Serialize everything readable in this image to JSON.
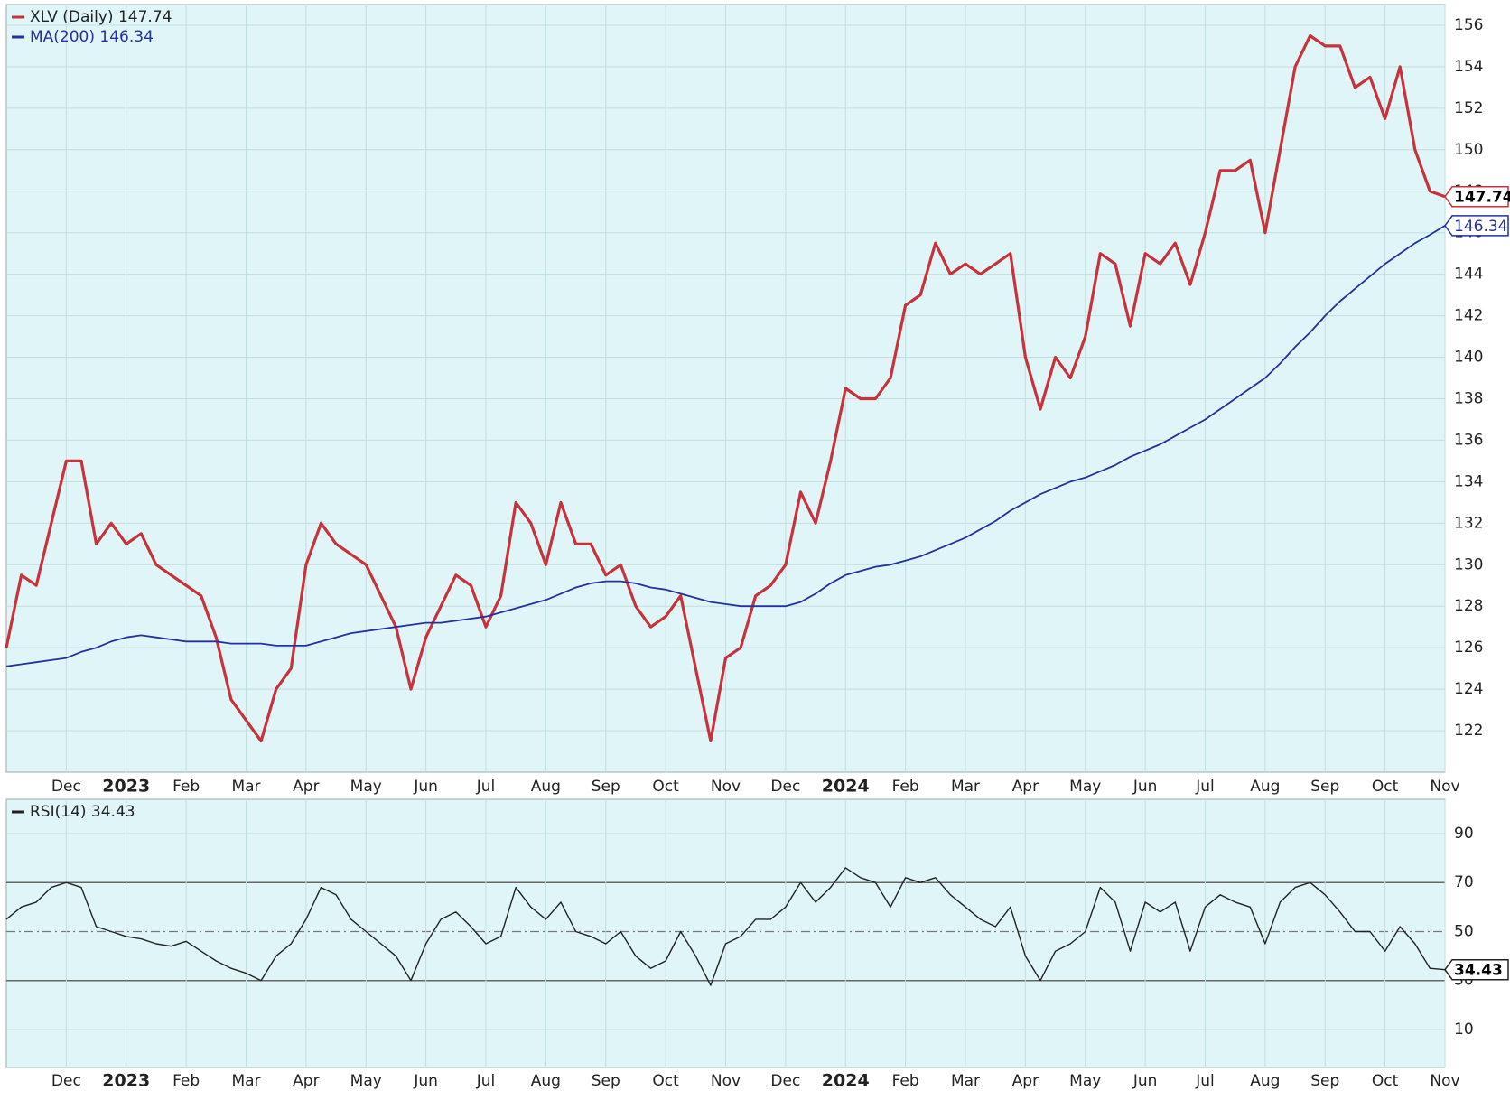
{
  "chart_data": [
    {
      "type": "line",
      "categories": [
        null,
        null,
        null,
        null,
        "Dec",
        null,
        null,
        null,
        "2023",
        null,
        null,
        null,
        "Feb",
        null,
        null,
        null,
        "Mar",
        null,
        null,
        null,
        "Apr",
        null,
        null,
        null,
        "May",
        null,
        null,
        null,
        "Jun",
        null,
        null,
        null,
        "Jul",
        null,
        null,
        null,
        "Aug",
        null,
        null,
        null,
        "Sep",
        null,
        null,
        null,
        "Oct",
        null,
        null,
        null,
        "Nov",
        null,
        null,
        null,
        "Dec",
        null,
        null,
        null,
        "2024",
        null,
        null,
        null,
        "Feb",
        null,
        null,
        null,
        "Mar",
        null,
        null,
        null,
        "Apr",
        null,
        null,
        null,
        "May",
        null,
        null,
        null,
        "Jun",
        null,
        null,
        null,
        "Jul",
        null,
        null,
        null,
        "Aug",
        null,
        null,
        null,
        "Sep",
        null,
        null,
        null,
        "Oct",
        null,
        null,
        null,
        "Nov"
      ],
      "series": [
        {
          "name": "XLV (Daily)",
          "color": "#c8323c",
          "values": [
            126,
            129.5,
            129,
            132,
            135,
            135,
            131,
            132,
            131,
            131.5,
            130,
            129.5,
            129,
            128.5,
            126.5,
            123.5,
            122.5,
            121.5,
            124,
            125,
            130,
            132,
            131,
            130.5,
            130,
            128.5,
            127,
            124,
            126.5,
            128,
            129.5,
            129,
            127,
            128.5,
            133,
            132,
            130,
            133,
            131,
            131,
            129.5,
            130,
            128,
            127,
            127.5,
            128.5,
            125,
            121.5,
            125.5,
            126,
            128.5,
            129,
            130,
            133.5,
            132,
            135,
            138.5,
            138,
            138,
            139,
            142.5,
            143,
            145.5,
            144,
            144.5,
            144,
            144.5,
            145,
            140,
            137.5,
            140,
            139,
            141,
            145,
            144.5,
            141.5,
            145,
            144.5,
            145.5,
            143.5,
            146,
            149,
            149,
            149.5,
            146,
            150,
            154,
            155.5,
            155,
            155,
            153,
            153.5,
            151.5,
            154,
            150,
            148,
            147.74
          ]
        },
        {
          "name": "MA(200)",
          "color": "#23329e",
          "values": [
            125.1,
            125.2,
            125.3,
            125.4,
            125.5,
            125.8,
            126.0,
            126.3,
            126.5,
            126.6,
            126.5,
            126.4,
            126.3,
            126.3,
            126.3,
            126.2,
            126.2,
            126.2,
            126.1,
            126.1,
            126.1,
            126.3,
            126.5,
            126.7,
            126.8,
            126.9,
            127.0,
            127.1,
            127.2,
            127.2,
            127.3,
            127.4,
            127.5,
            127.7,
            127.9,
            128.1,
            128.3,
            128.6,
            128.9,
            129.1,
            129.2,
            129.2,
            129.1,
            128.9,
            128.8,
            128.6,
            128.4,
            128.2,
            128.1,
            128.0,
            128.0,
            128.0,
            128.0,
            128.2,
            128.6,
            129.1,
            129.5,
            129.7,
            129.9,
            130.0,
            130.2,
            130.4,
            130.7,
            131.0,
            131.3,
            131.7,
            132.1,
            132.6,
            133.0,
            133.4,
            133.7,
            134.0,
            134.2,
            134.5,
            134.8,
            135.2,
            135.5,
            135.8,
            136.2,
            136.6,
            137.0,
            137.5,
            138.0,
            138.5,
            139.0,
            139.7,
            140.5,
            141.2,
            142.0,
            142.7,
            143.3,
            143.9,
            144.5,
            145.0,
            145.5,
            145.9,
            146.34
          ]
        }
      ],
      "ylim": [
        120,
        157
      ],
      "yticks": [
        122,
        124,
        126,
        128,
        130,
        132,
        134,
        136,
        138,
        140,
        142,
        144,
        146,
        148,
        150,
        152,
        154,
        156
      ],
      "grid": true
    },
    {
      "type": "line",
      "categories": [
        null,
        null,
        null,
        null,
        "Dec",
        null,
        null,
        null,
        "2023",
        null,
        null,
        null,
        "Feb",
        null,
        null,
        null,
        "Mar",
        null,
        null,
        null,
        "Apr",
        null,
        null,
        null,
        "May",
        null,
        null,
        null,
        "Jun",
        null,
        null,
        null,
        "Jul",
        null,
        null,
        null,
        "Aug",
        null,
        null,
        null,
        "Sep",
        null,
        null,
        null,
        "Oct",
        null,
        null,
        null,
        "Nov",
        null,
        null,
        null,
        "Dec",
        null,
        null,
        null,
        "2024",
        null,
        null,
        null,
        "Feb",
        null,
        null,
        null,
        "Mar",
        null,
        null,
        null,
        "Apr",
        null,
        null,
        null,
        "May",
        null,
        null,
        null,
        "Jun",
        null,
        null,
        null,
        "Jul",
        null,
        null,
        null,
        "Aug",
        null,
        null,
        null,
        "Sep",
        null,
        null,
        null,
        "Oct",
        null,
        null,
        null,
        "Nov"
      ],
      "series": [
        {
          "name": "RSI(14)",
          "color": "#222222",
          "values": [
            55,
            60,
            62,
            68,
            70,
            68,
            52,
            50,
            48,
            47,
            45,
            44,
            46,
            42,
            38,
            35,
            33,
            30,
            40,
            45,
            55,
            68,
            65,
            55,
            50,
            45,
            40,
            30,
            45,
            55,
            58,
            52,
            45,
            48,
            68,
            60,
            55,
            62,
            50,
            48,
            45,
            50,
            40,
            35,
            38,
            50,
            40,
            28,
            45,
            48,
            55,
            55,
            60,
            70,
            62,
            68,
            76,
            72,
            70,
            60,
            72,
            70,
            72,
            65,
            60,
            55,
            52,
            60,
            40,
            30,
            42,
            45,
            50,
            68,
            62,
            42,
            62,
            58,
            62,
            42,
            60,
            65,
            62,
            60,
            45,
            62,
            68,
            70,
            65,
            58,
            50,
            50,
            42,
            52,
            45,
            35,
            34.43
          ]
        }
      ],
      "ylim": [
        -5.5,
        104
      ],
      "yticks": [
        10,
        30,
        50,
        70,
        90
      ],
      "thresholds": [
        30,
        70
      ],
      "midline": 50,
      "grid": true
    }
  ]
}
